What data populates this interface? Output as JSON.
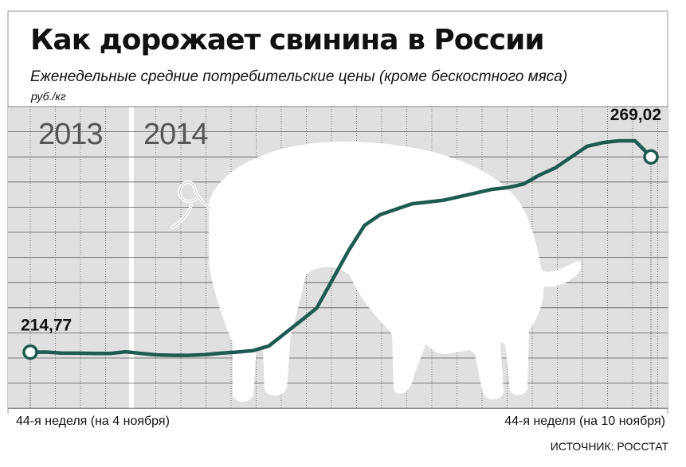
{
  "header": {
    "title": "Как дорожает свинина в России",
    "subtitle": "Еженедельные средние потребительские цены (кроме бескостного мяса)",
    "unit": "руб./кг"
  },
  "source": "ИСТОЧНИК: РОССТАТ",
  "colors": {
    "line": "#1d5a4f",
    "plot_bg": "#e0e0e0",
    "grid": "#5a5a5a",
    "silhouette": "#ffffff",
    "frame": "#999999"
  },
  "icons": {
    "background": "pig-silhouette-icon",
    "endpoints": "circle-marker-icon"
  },
  "chart_data": {
    "type": "line",
    "title": "Как дорожает свинина в России",
    "subtitle": "Еженедельные средние потребительские цены (кроме бескостного мяса)",
    "ylabel": "руб./кг",
    "grid": true,
    "periods": [
      "2013",
      "2014"
    ],
    "x_labels": {
      "start": "44-я неделя (на 4 ноября)",
      "end": "44-я неделя (на 10 ноября)"
    },
    "annotations": {
      "start": "214,77",
      "end": "269,02"
    },
    "ylim": [
      199,
      283
    ],
    "series": [
      {
        "values": [
          214.77,
          214.8,
          214.5,
          214.5,
          214.4,
          214.4,
          214.9,
          214.4,
          214.0,
          213.9,
          213.9,
          214.1,
          214.5,
          214.8,
          215.2,
          216.5,
          220,
          223.5,
          227,
          235,
          243,
          250,
          253,
          254.5,
          256,
          256.5,
          257,
          258,
          259,
          260,
          260.5,
          261.5,
          264,
          266,
          269,
          272,
          273,
          273.5,
          273.5,
          269.02
        ]
      }
    ]
  }
}
